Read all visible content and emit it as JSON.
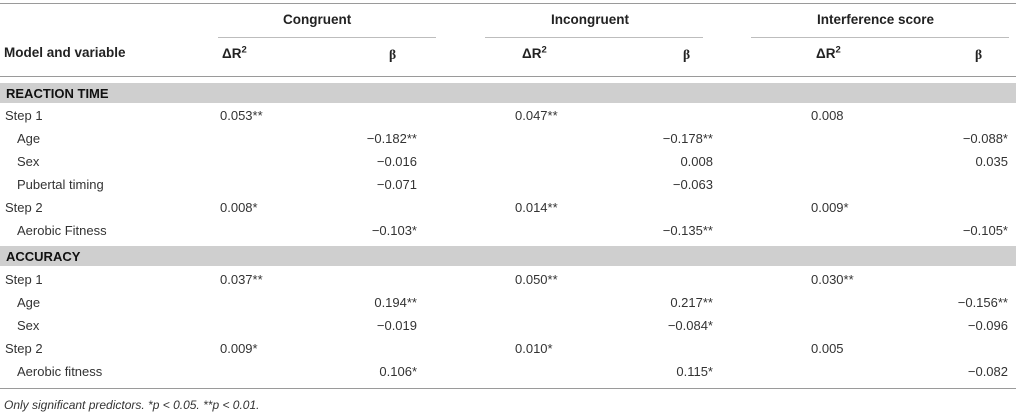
{
  "header": {
    "row_label": "Model and variable",
    "groups": [
      "Congruent",
      "Incongruent",
      "Interference score"
    ],
    "delta_r2": "ΔR",
    "delta_r2_sup": "2",
    "beta": "β"
  },
  "sections": [
    {
      "title": "REACTION TIME",
      "rows": [
        {
          "label": "Step 1",
          "indent": false,
          "values": [
            "0.053**",
            "",
            "0.047**",
            "",
            "0.008",
            ""
          ]
        },
        {
          "label": "Age",
          "indent": true,
          "values": [
            "",
            "−0.182**",
            "",
            "−0.178**",
            "",
            "−0.088*"
          ]
        },
        {
          "label": "Sex",
          "indent": true,
          "values": [
            "",
            "−0.016",
            "",
            "0.008",
            "",
            "0.035"
          ]
        },
        {
          "label": "Pubertal timing",
          "indent": true,
          "values": [
            "",
            "−0.071",
            "",
            "−0.063",
            "",
            ""
          ]
        },
        {
          "label": "Step 2",
          "indent": false,
          "values": [
            "0.008*",
            "",
            "0.014**",
            "",
            "0.009*",
            ""
          ]
        },
        {
          "label": "Aerobic Fitness",
          "indent": true,
          "values": [
            "",
            "−0.103*",
            "",
            "−0.135**",
            "",
            "−0.105*"
          ]
        }
      ]
    },
    {
      "title": "ACCURACY",
      "rows": [
        {
          "label": "Step 1",
          "indent": false,
          "values": [
            "0.037**",
            "",
            "0.050**",
            "",
            "0.030**",
            ""
          ]
        },
        {
          "label": "Age",
          "indent": true,
          "values": [
            "",
            "0.194**",
            "",
            "0.217**",
            "",
            "−0.156**"
          ]
        },
        {
          "label": "Sex",
          "indent": true,
          "values": [
            "",
            "−0.019",
            "",
            "−0.084*",
            "",
            "−0.096"
          ]
        },
        {
          "label": "Step 2",
          "indent": false,
          "values": [
            "0.009*",
            "",
            "0.010*",
            "",
            "0.005",
            ""
          ]
        },
        {
          "label": "Aerobic fitness",
          "indent": true,
          "values": [
            "",
            "0.106*",
            "",
            "0.115*",
            "",
            "−0.082"
          ]
        }
      ]
    }
  ],
  "footnote": "Only significant predictors. *p < 0.05. **p < 0.01."
}
